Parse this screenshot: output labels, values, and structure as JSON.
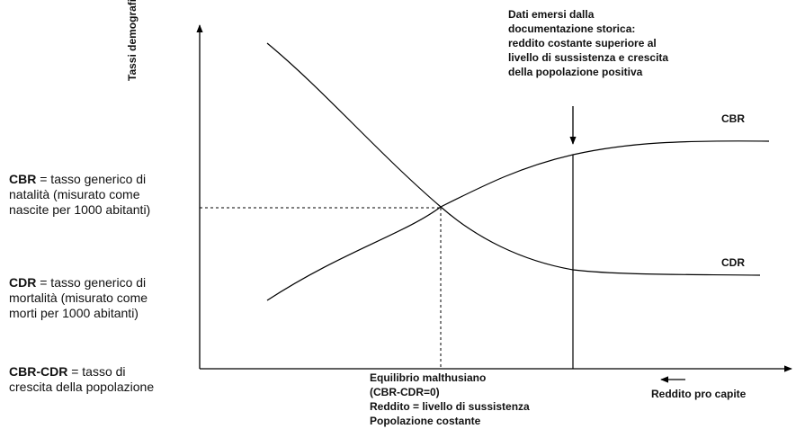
{
  "diagram": {
    "y_axis_label": "Tassi demografici",
    "x_axis_label": "Reddito pro capite",
    "curves": {
      "cbr_label": "CBR",
      "cdr_label": "CDR"
    },
    "historical_annotation": [
      "Dati emersi dalla",
      "documentazione storica:",
      "reddito costante superiore al",
      "livello di sussistenza e crescita",
      "della popolazione positiva"
    ],
    "equilibrium_annotation": [
      "Equilibrio malthusiano",
      "(CBR-CDR=0)",
      "Reddito = livello di sussistenza",
      "Popolazione costante"
    ]
  },
  "legend": {
    "cbr": {
      "term": "CBR",
      "definition": " = tasso generico di natalità (misurato come nascite per 1000 abitanti)"
    },
    "cdr": {
      "term": "CDR",
      "definition": " = tasso generico di mortalità (misurato come morti per 1000 abitanti)"
    },
    "growth": {
      "term": "CBR-CDR",
      "definition": " = tasso di crescita della popolazione"
    }
  }
}
